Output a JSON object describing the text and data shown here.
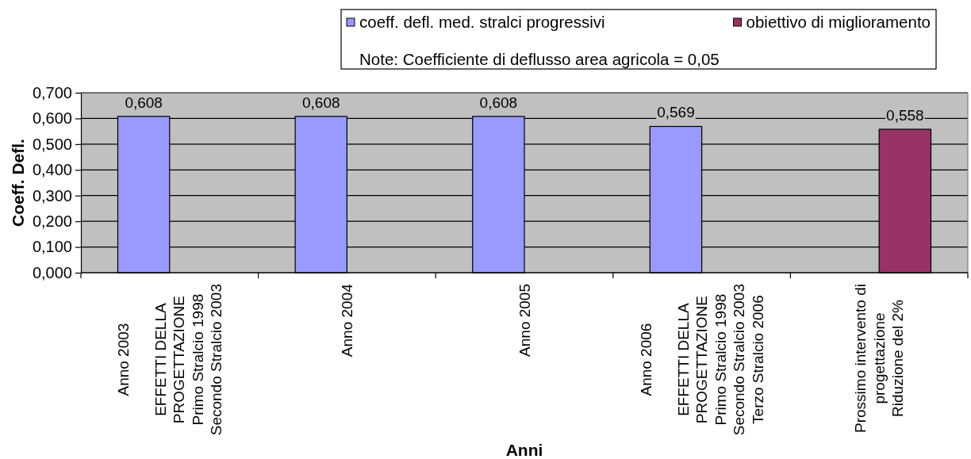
{
  "chart_data": {
    "type": "bar",
    "xlabel": "Anni",
    "ylabel": "Coeff. Defl.",
    "categories": [
      "Anno 2003\n\nEFFETTI DELLA\nPROGETTAZIONE\nPrimo Stralcio 1998\nSecondo Stralcio 2003",
      "Anno 2004",
      "Anno 2005",
      "Anno 2006\n\nEFFETTI DELLA\nPROGETTAZIONE\nPrimo Stralcio 1998\nSecondo Stralcio 2003\nTerzo Stralcio 2006",
      "Prossimo intervento di\nprogettazione\nRiduzione del 2%"
    ],
    "series": [
      {
        "name": "coeff. defl. med. stralci progressivi",
        "color": "#9999ff",
        "values": [
          0.608,
          0.608,
          0.608,
          0.569,
          null
        ],
        "value_labels": [
          "0,608",
          "0,608",
          "0,608",
          "0,569",
          null
        ]
      },
      {
        "name": "obiettivo di miglioramento",
        "color": "#993366",
        "values": [
          null,
          null,
          null,
          null,
          0.558
        ],
        "value_labels": [
          null,
          null,
          null,
          null,
          "0,558"
        ]
      }
    ],
    "ylim": [
      0,
      0.7
    ],
    "yticks": [
      {
        "value": 0,
        "label": "0,000"
      },
      {
        "value": 0.1,
        "label": "0,100"
      },
      {
        "value": 0.2,
        "label": "0,200"
      },
      {
        "value": 0.3,
        "label": "0,300"
      },
      {
        "value": 0.4,
        "label": "0,400"
      },
      {
        "value": 0.5,
        "label": "0,500"
      },
      {
        "value": 0.6,
        "label": "0,600"
      },
      {
        "value": 0.7,
        "label": "0,700"
      }
    ],
    "grid": "y",
    "legend": "top right",
    "annotations": [
      "Note: Coefficiente di deflusso area agricola = 0,05"
    ]
  }
}
